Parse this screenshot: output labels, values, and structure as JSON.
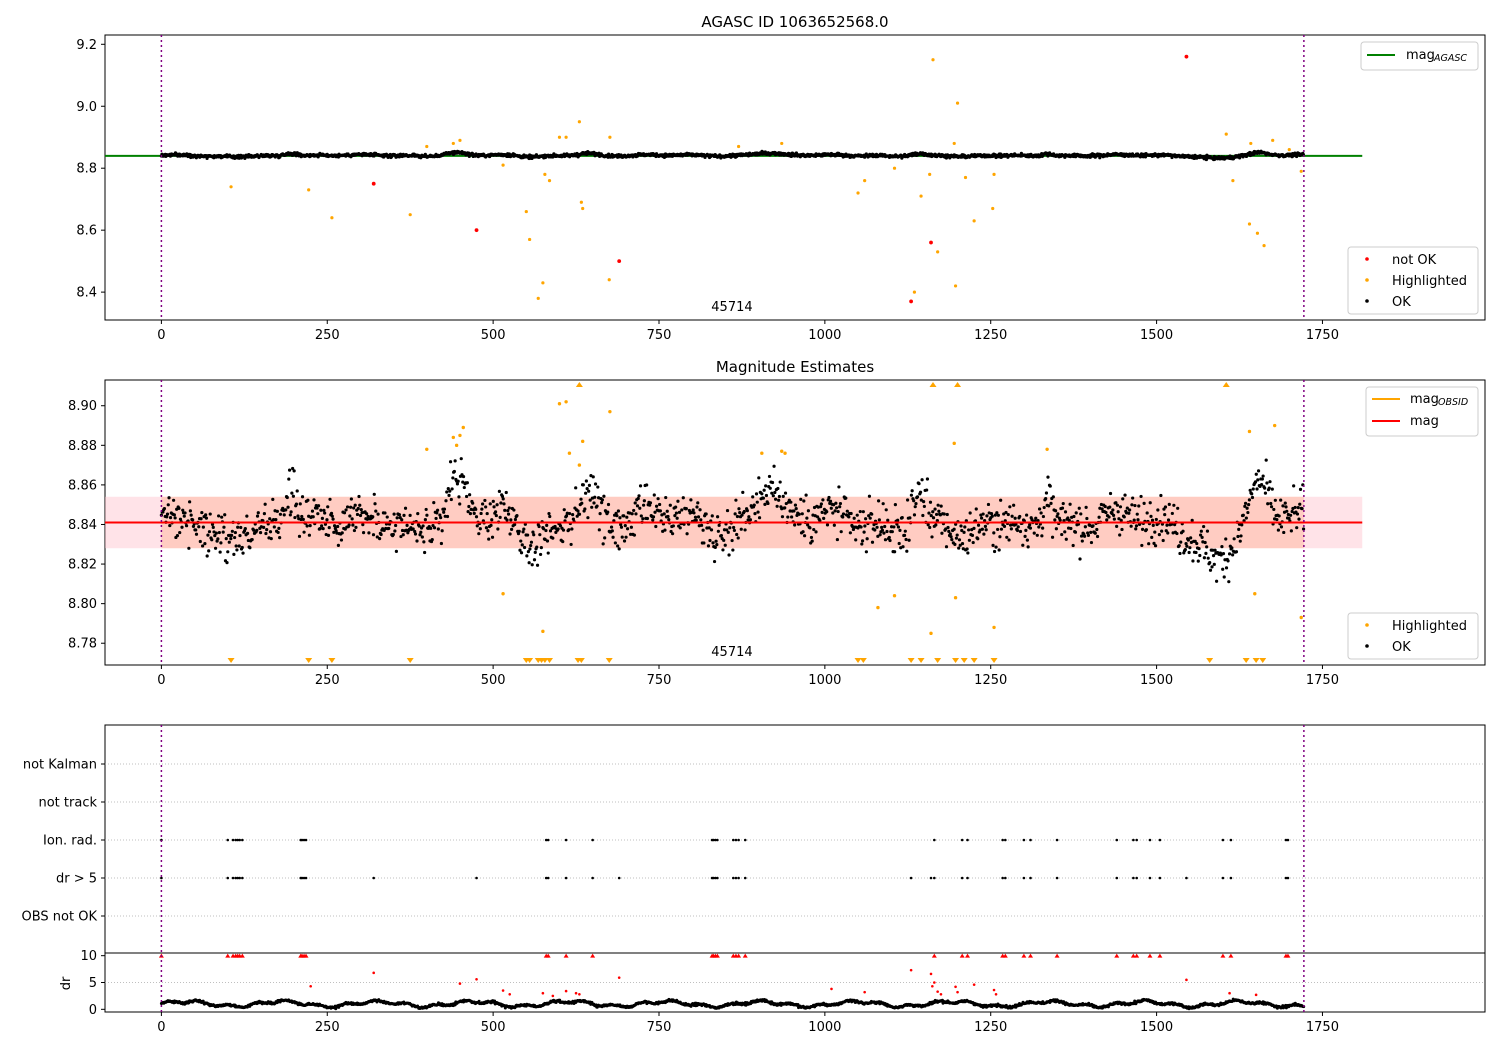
{
  "chart_data": [
    {
      "type": "scatter",
      "title": "AGASC ID 1063652568.0",
      "xlim": [
        -85,
        1995
      ],
      "ylim": [
        8.31,
        9.23
      ],
      "xticks": [
        0,
        250,
        500,
        750,
        1000,
        1250,
        1500,
        1750
      ],
      "yticks": [
        8.4,
        8.6,
        8.8,
        9.0,
        9.2
      ],
      "ytick_labels": [
        "8.4",
        "8.6",
        "8.8",
        "9.0",
        "9.2"
      ],
      "obsid_label": "45714",
      "vlines": [
        0,
        1722
      ],
      "reference": {
        "name": "mag_AGASC",
        "value": 8.84,
        "x": [
          -85,
          1810
        ]
      },
      "ok_band": {
        "center": 8.841,
        "half_width": 0.008
      },
      "legend_lines": [
        {
          "label": "mag",
          "sub": "AGASC",
          "color": "#008000"
        }
      ],
      "legend_points": [
        {
          "label": "not OK",
          "color": "#ff0000"
        },
        {
          "label": "Highlighted",
          "color": "#ffa500"
        },
        {
          "label": "OK",
          "color": "#000000"
        }
      ],
      "highlighted": [
        [
          105,
          8.74
        ],
        [
          222,
          8.73
        ],
        [
          257,
          8.64
        ],
        [
          375,
          8.65
        ],
        [
          400,
          8.87
        ],
        [
          440,
          8.88
        ],
        [
          450,
          8.89
        ],
        [
          515,
          8.81
        ],
        [
          550,
          8.66
        ],
        [
          555,
          8.57
        ],
        [
          568,
          8.38
        ],
        [
          575,
          8.43
        ],
        [
          578,
          8.78
        ],
        [
          585,
          8.76
        ],
        [
          600,
          8.9
        ],
        [
          610,
          8.9
        ],
        [
          630,
          8.95
        ],
        [
          633,
          8.69
        ],
        [
          635,
          8.67
        ],
        [
          675,
          8.44
        ],
        [
          676,
          8.9
        ],
        [
          870,
          8.87
        ],
        [
          935,
          8.88
        ],
        [
          1050,
          8.72
        ],
        [
          1060,
          8.76
        ],
        [
          1105,
          8.8
        ],
        [
          1135,
          8.4
        ],
        [
          1145,
          8.71
        ],
        [
          1158,
          8.78
        ],
        [
          1163,
          9.15
        ],
        [
          1170,
          8.53
        ],
        [
          1195,
          8.88
        ],
        [
          1197,
          8.42
        ],
        [
          1200,
          9.01
        ],
        [
          1212,
          8.77
        ],
        [
          1225,
          8.63
        ],
        [
          1253,
          8.67
        ],
        [
          1255,
          8.78
        ],
        [
          1605,
          8.91
        ],
        [
          1615,
          8.76
        ],
        [
          1640,
          8.62
        ],
        [
          1642,
          8.88
        ],
        [
          1652,
          8.59
        ],
        [
          1662,
          8.55
        ],
        [
          1675,
          8.89
        ],
        [
          1700,
          8.86
        ],
        [
          1718,
          8.79
        ]
      ],
      "not_ok": [
        [
          320,
          8.75
        ],
        [
          475,
          8.6
        ],
        [
          690,
          8.5
        ],
        [
          1130,
          8.37
        ],
        [
          1160,
          8.56
        ],
        [
          1545,
          9.16
        ]
      ]
    },
    {
      "type": "scatter",
      "title": "Magnitude Estimates",
      "xlim": [
        -85,
        1995
      ],
      "ylim": [
        8.769,
        8.913
      ],
      "xticks": [
        0,
        250,
        500,
        750,
        1000,
        1250,
        1500,
        1750
      ],
      "yticks": [
        8.78,
        8.8,
        8.82,
        8.84,
        8.86,
        8.88,
        8.9
      ],
      "ytick_labels": [
        "8.78",
        "8.80",
        "8.82",
        "8.84",
        "8.86",
        "8.88",
        "8.90"
      ],
      "obsid_label": "45714",
      "vlines": [
        0,
        1722
      ],
      "mag_line": {
        "value": 8.841,
        "x": [
          -85,
          1810
        ]
      },
      "error_band": {
        "low": 8.828,
        "high": 8.854,
        "x": [
          -85,
          1810
        ]
      },
      "obsid_band": {
        "low": 8.828,
        "high": 8.854,
        "x": [
          0,
          1722
        ]
      },
      "legend_lines": [
        {
          "label": "mag",
          "sub": "OBSID",
          "color": "#ffa500"
        },
        {
          "label": "mag",
          "sub": "",
          "color": "#ff0000"
        }
      ],
      "legend_points": [
        {
          "label": "Highlighted",
          "color": "#ffa500"
        },
        {
          "label": "OK",
          "color": "#000000"
        }
      ],
      "highlighted": [
        [
          400,
          8.878
        ],
        [
          440,
          8.884
        ],
        [
          445,
          8.88
        ],
        [
          450,
          8.885
        ],
        [
          455,
          8.889
        ],
        [
          515,
          8.805
        ],
        [
          575,
          8.786
        ],
        [
          600,
          8.901
        ],
        [
          610,
          8.902
        ],
        [
          615,
          8.876
        ],
        [
          630,
          8.87
        ],
        [
          635,
          8.882
        ],
        [
          676,
          8.897
        ],
        [
          905,
          8.876
        ],
        [
          935,
          8.877
        ],
        [
          940,
          8.876
        ],
        [
          1080,
          8.798
        ],
        [
          1105,
          8.804
        ],
        [
          1160,
          8.785
        ],
        [
          1195,
          8.881
        ],
        [
          1197,
          8.803
        ],
        [
          1255,
          8.788
        ],
        [
          1335,
          8.878
        ],
        [
          1640,
          8.887
        ],
        [
          1648,
          8.805
        ],
        [
          1678,
          8.89
        ],
        [
          1718,
          8.793
        ]
      ],
      "above_markers": [
        630,
        1163,
        1200,
        1605
      ],
      "below_markers": [
        105,
        222,
        257,
        375,
        550,
        555,
        568,
        573,
        578,
        585,
        628,
        633,
        675,
        1050,
        1058,
        1130,
        1145,
        1170,
        1197,
        1210,
        1225,
        1255,
        1580,
        1635,
        1650,
        1660
      ]
    },
    {
      "type": "scatter",
      "title": "",
      "xlim": [
        -85,
        1995
      ],
      "xticks": [
        0,
        250,
        500,
        750,
        1000,
        1250,
        1500,
        1750
      ],
      "vlines": [
        0,
        1722
      ],
      "flag_rows": [
        "not Kalman",
        "not track",
        "Ion. rad.",
        "dr > 5",
        "OBS not OK"
      ],
      "ion_rad_x": [
        0,
        100,
        108,
        112,
        115,
        118,
        122,
        210,
        212,
        215,
        218,
        580,
        583,
        610,
        650,
        830,
        832,
        835,
        838,
        862,
        866,
        870,
        880,
        1165,
        1207,
        1215,
        1268,
        1272,
        1300,
        1310,
        1350,
        1440,
        1465,
        1470,
        1490,
        1505,
        1600,
        1612,
        1695,
        1698
      ],
      "dr5_x": [
        0,
        100,
        108,
        112,
        115,
        118,
        122,
        210,
        212,
        215,
        218,
        320,
        475,
        580,
        583,
        610,
        650,
        690,
        830,
        832,
        835,
        838,
        862,
        866,
        870,
        880,
        1130,
        1160,
        1165,
        1207,
        1215,
        1268,
        1272,
        1300,
        1310,
        1350,
        1440,
        1465,
        1470,
        1490,
        1505,
        1545,
        1600,
        1612,
        1695,
        1698
      ],
      "dr_ylim": [
        -0.5,
        10.5
      ],
      "dr_yticks": [
        0,
        5,
        10
      ],
      "dr_ylabel": "dr",
      "dr_clipped_x": [
        0,
        100,
        108,
        112,
        115,
        118,
        122,
        210,
        212,
        215,
        218,
        580,
        583,
        610,
        650,
        830,
        832,
        835,
        838,
        862,
        866,
        870,
        880,
        1165,
        1207,
        1215,
        1268,
        1272,
        1300,
        1310,
        1350,
        1440,
        1465,
        1470,
        1490,
        1505,
        1600,
        1612,
        1695,
        1698
      ],
      "dr_red": [
        [
          225,
          4.3
        ],
        [
          320,
          6.8
        ],
        [
          450,
          4.8
        ],
        [
          475,
          5.6
        ],
        [
          515,
          3.5
        ],
        [
          525,
          2.8
        ],
        [
          575,
          3.0
        ],
        [
          590,
          2.5
        ],
        [
          610,
          3.4
        ],
        [
          625,
          3.0
        ],
        [
          630,
          2.8
        ],
        [
          690,
          5.9
        ],
        [
          1010,
          3.8
        ],
        [
          1060,
          3.2
        ],
        [
          1130,
          7.3
        ],
        [
          1160,
          6.6
        ],
        [
          1162,
          4.3
        ],
        [
          1165,
          5.0
        ],
        [
          1170,
          3.3
        ],
        [
          1175,
          2.8
        ],
        [
          1197,
          4.2
        ],
        [
          1200,
          3.2
        ],
        [
          1225,
          4.6
        ],
        [
          1255,
          3.6
        ],
        [
          1258,
          2.8
        ],
        [
          1545,
          5.5
        ],
        [
          1610,
          3.0
        ],
        [
          1650,
          2.7
        ]
      ]
    }
  ]
}
